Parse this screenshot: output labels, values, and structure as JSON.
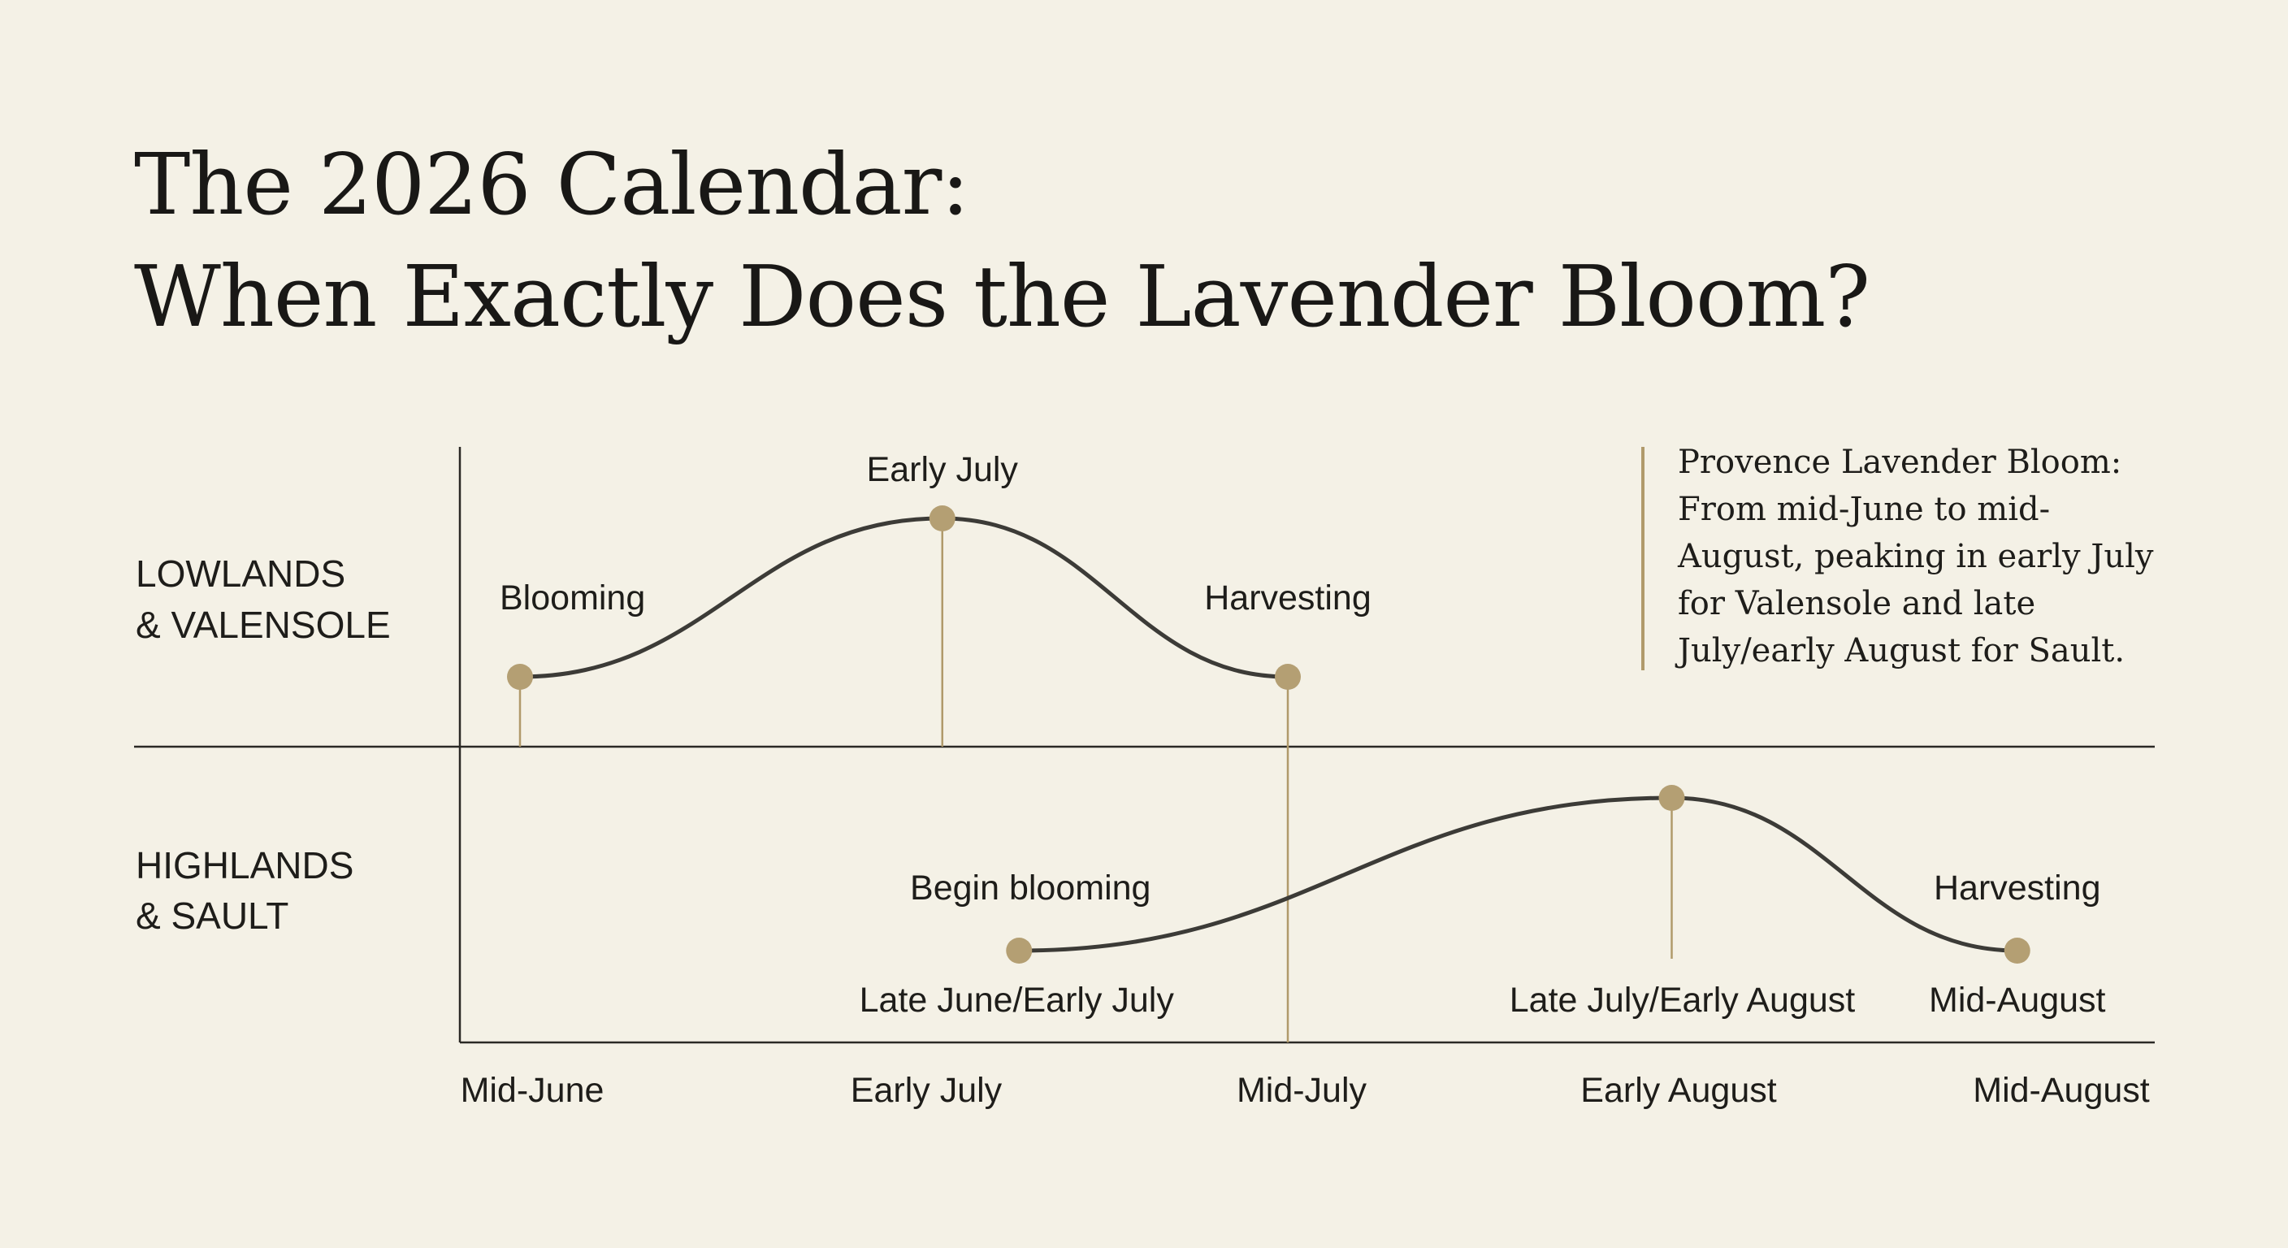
{
  "title": {
    "line1": "The 2026 Calendar:",
    "line2": "When Exactly Does the Lavender Bloom?"
  },
  "note": {
    "lines": [
      "Provence Lavender Bloom:",
      "From mid-June to mid-",
      "August, peaking in early July",
      "for Valensole and late",
      "July/early August for Sault."
    ]
  },
  "colors": {
    "background": "#f4f1e6",
    "curve": "#3c3b37",
    "marker": "#b49f73",
    "rule": "#b09a6b",
    "text": "#1e1d1a"
  },
  "chart_data": {
    "type": "line",
    "x_ticks": [
      "Mid-June",
      "Early July",
      "Mid-July",
      "Early August",
      "Mid-August"
    ],
    "rows": [
      {
        "name_lines": [
          "LOWLANDS",
          "& VALENSOLE"
        ],
        "points": [
          {
            "x": 0.0,
            "level": 0.0,
            "above_label": "Blooming",
            "below_label": ""
          },
          {
            "x": 1.1,
            "level": 1.0,
            "above_label": "Early July",
            "below_label": ""
          },
          {
            "x": 2.0,
            "level": 0.0,
            "above_label": "Harvesting",
            "below_label": ""
          }
        ]
      },
      {
        "name_lines": [
          "HIGHLANDS",
          "& SAULT"
        ],
        "points": [
          {
            "x": 1.3,
            "level": 0.0,
            "above_label": "Begin blooming",
            "below_label": "Late June/Early July"
          },
          {
            "x": 3.0,
            "level": 1.0,
            "above_label": "",
            "below_label": "Late July/Early August"
          },
          {
            "x": 3.9,
            "level": 0.0,
            "above_label": "Harvesting",
            "below_label": "Mid-August"
          }
        ]
      }
    ]
  }
}
